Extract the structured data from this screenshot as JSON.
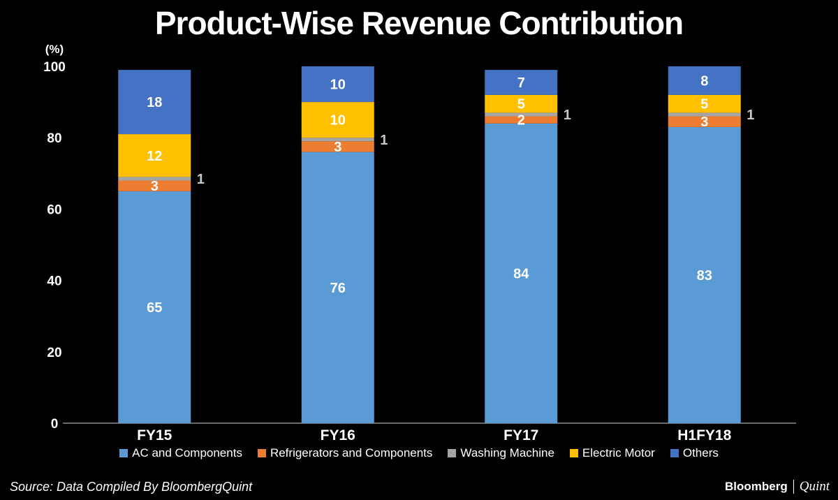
{
  "chart_data": {
    "type": "bar",
    "stacked": true,
    "title": "Product-Wise Revenue Contribution",
    "ylabel": "(%)",
    "xlabel": "",
    "ylim": [
      0,
      100
    ],
    "yticks": [
      0,
      20,
      40,
      60,
      80,
      100
    ],
    "categories": [
      "FY15",
      "FY16",
      "FY17",
      "H1FY18"
    ],
    "series": [
      {
        "name": "AC and Components",
        "color": "#5b9bd5",
        "values": [
          65,
          76,
          84,
          83
        ]
      },
      {
        "name": "Refrigerators and Components",
        "color": "#ed7d31",
        "values": [
          3,
          3,
          2,
          3
        ]
      },
      {
        "name": "Washing Machine",
        "color": "#a5a5a5",
        "values": [
          1,
          1,
          1,
          1
        ]
      },
      {
        "name": "Electric Motor",
        "color": "#ffc000",
        "values": [
          12,
          10,
          5,
          5
        ]
      },
      {
        "name": "Others",
        "color": "#4472c4",
        "values": [
          18,
          10,
          7,
          8
        ]
      }
    ],
    "legend_position": "bottom"
  },
  "footer": {
    "source": "Source: Data Compiled By BloombergQuint",
    "brand_primary": "Bloomberg",
    "brand_secondary": "Quint"
  }
}
